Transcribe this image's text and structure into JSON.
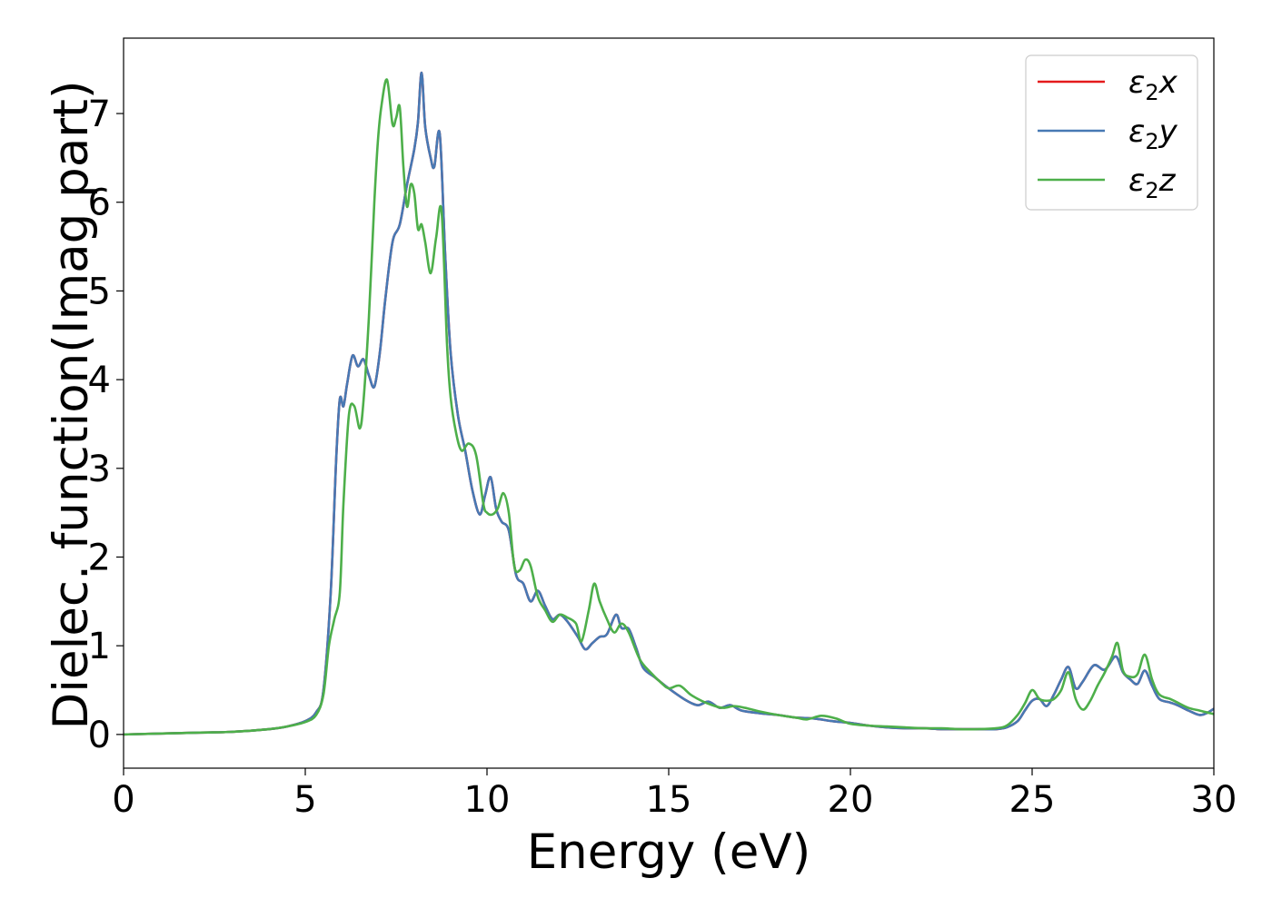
{
  "chart_data": {
    "type": "line",
    "title": "",
    "xlabel": "Energy (eV)",
    "ylabel": "Dielec. function(Imag part)",
    "xlim": [
      0,
      30
    ],
    "ylim": [
      -0.38,
      7.85
    ],
    "xticks": [
      0,
      5,
      10,
      15,
      20,
      25,
      30
    ],
    "yticks": [
      0,
      1,
      2,
      3,
      4,
      5,
      6,
      7
    ],
    "grid": false,
    "legend_position": "top-right",
    "series": [
      {
        "name": "ε₂x",
        "label_main": "ε",
        "label_sub": "2",
        "label_suffix": "x",
        "color": "#e41a1c",
        "x": [
          0,
          2,
          3,
          4,
          4.5,
          5,
          5.3,
          5.5,
          5.7,
          5.85,
          5.95,
          6.05,
          6.15,
          6.3,
          6.45,
          6.6,
          6.75,
          6.9,
          7.05,
          7.2,
          7.4,
          7.6,
          7.8,
          8.0,
          8.1,
          8.2,
          8.3,
          8.45,
          8.55,
          8.7,
          8.85,
          9.0,
          9.2,
          9.4,
          9.6,
          9.8,
          9.95,
          10.1,
          10.25,
          10.4,
          10.6,
          10.8,
          11.0,
          11.2,
          11.4,
          11.6,
          11.8,
          12.0,
          12.2,
          12.5,
          12.7,
          12.9,
          13.1,
          13.3,
          13.55,
          13.7,
          13.9,
          14.1,
          14.3,
          14.6,
          14.9,
          15.2,
          15.5,
          15.8,
          16.1,
          16.4,
          16.7,
          17.0,
          17.5,
          18.0,
          18.5,
          19.0,
          19.5,
          20.0,
          20.5,
          21.0,
          21.5,
          22.0,
          22.5,
          23.0,
          23.5,
          24.0,
          24.3,
          24.6,
          24.8,
          25.0,
          25.2,
          25.4,
          25.6,
          25.8,
          26.0,
          26.2,
          26.4,
          26.7,
          27.0,
          27.3,
          27.5,
          27.7,
          27.9,
          28.1,
          28.3,
          28.5,
          28.8,
          29.0,
          29.3,
          29.6,
          29.8,
          30.0
        ],
        "y": [
          0.0,
          0.02,
          0.03,
          0.06,
          0.09,
          0.15,
          0.25,
          0.5,
          1.6,
          3.1,
          3.78,
          3.7,
          3.95,
          4.27,
          4.15,
          4.23,
          4.05,
          3.92,
          4.3,
          4.9,
          5.55,
          5.75,
          6.2,
          6.6,
          6.9,
          7.46,
          6.85,
          6.5,
          6.4,
          6.77,
          5.4,
          4.3,
          3.6,
          3.2,
          2.75,
          2.48,
          2.7,
          2.9,
          2.55,
          2.4,
          2.3,
          1.8,
          1.7,
          1.5,
          1.62,
          1.45,
          1.3,
          1.35,
          1.28,
          1.1,
          0.96,
          1.03,
          1.1,
          1.13,
          1.35,
          1.2,
          1.19,
          0.98,
          0.75,
          0.65,
          0.55,
          0.46,
          0.38,
          0.33,
          0.37,
          0.3,
          0.33,
          0.27,
          0.24,
          0.22,
          0.19,
          0.18,
          0.15,
          0.13,
          0.1,
          0.08,
          0.07,
          0.07,
          0.06,
          0.06,
          0.06,
          0.06,
          0.08,
          0.15,
          0.27,
          0.38,
          0.4,
          0.32,
          0.45,
          0.62,
          0.76,
          0.52,
          0.6,
          0.78,
          0.73,
          0.88,
          0.7,
          0.62,
          0.57,
          0.72,
          0.55,
          0.4,
          0.36,
          0.33,
          0.27,
          0.22,
          0.24,
          0.29
        ]
      },
      {
        "name": "ε₂y",
        "label_main": "ε",
        "label_sub": "2",
        "label_suffix": "y",
        "color": "#4779b4",
        "x": [
          0,
          2,
          3,
          4,
          4.5,
          5,
          5.3,
          5.5,
          5.7,
          5.85,
          5.95,
          6.05,
          6.15,
          6.3,
          6.45,
          6.6,
          6.75,
          6.9,
          7.05,
          7.2,
          7.4,
          7.6,
          7.8,
          8.0,
          8.1,
          8.2,
          8.3,
          8.45,
          8.55,
          8.7,
          8.85,
          9.0,
          9.2,
          9.4,
          9.6,
          9.8,
          9.95,
          10.1,
          10.25,
          10.4,
          10.6,
          10.8,
          11.0,
          11.2,
          11.4,
          11.6,
          11.8,
          12.0,
          12.2,
          12.5,
          12.7,
          12.9,
          13.1,
          13.3,
          13.55,
          13.7,
          13.9,
          14.1,
          14.3,
          14.6,
          14.9,
          15.2,
          15.5,
          15.8,
          16.1,
          16.4,
          16.7,
          17.0,
          17.5,
          18.0,
          18.5,
          19.0,
          19.5,
          20.0,
          20.5,
          21.0,
          21.5,
          22.0,
          22.5,
          23.0,
          23.5,
          24.0,
          24.3,
          24.6,
          24.8,
          25.0,
          25.2,
          25.4,
          25.6,
          25.8,
          26.0,
          26.2,
          26.4,
          26.7,
          27.0,
          27.3,
          27.5,
          27.7,
          27.9,
          28.1,
          28.3,
          28.5,
          28.8,
          29.0,
          29.3,
          29.6,
          29.8,
          30.0
        ],
        "y": [
          0.0,
          0.02,
          0.03,
          0.06,
          0.09,
          0.15,
          0.25,
          0.5,
          1.6,
          3.1,
          3.78,
          3.7,
          3.95,
          4.27,
          4.15,
          4.23,
          4.05,
          3.92,
          4.3,
          4.9,
          5.55,
          5.75,
          6.2,
          6.6,
          6.9,
          7.46,
          6.85,
          6.5,
          6.4,
          6.77,
          5.4,
          4.3,
          3.6,
          3.2,
          2.75,
          2.48,
          2.7,
          2.9,
          2.55,
          2.4,
          2.3,
          1.8,
          1.7,
          1.5,
          1.62,
          1.45,
          1.3,
          1.35,
          1.28,
          1.1,
          0.96,
          1.03,
          1.1,
          1.13,
          1.35,
          1.2,
          1.19,
          0.98,
          0.75,
          0.65,
          0.55,
          0.46,
          0.38,
          0.33,
          0.37,
          0.3,
          0.33,
          0.27,
          0.24,
          0.22,
          0.19,
          0.18,
          0.15,
          0.13,
          0.1,
          0.08,
          0.07,
          0.07,
          0.06,
          0.06,
          0.06,
          0.06,
          0.08,
          0.15,
          0.27,
          0.38,
          0.4,
          0.32,
          0.45,
          0.62,
          0.76,
          0.52,
          0.6,
          0.78,
          0.73,
          0.88,
          0.7,
          0.62,
          0.57,
          0.72,
          0.55,
          0.4,
          0.36,
          0.33,
          0.27,
          0.22,
          0.24,
          0.29
        ]
      },
      {
        "name": "ε₂z",
        "label_main": "ε",
        "label_sub": "2",
        "label_suffix": "z",
        "color": "#4daf4a",
        "x": [
          0,
          2,
          3,
          4,
          4.5,
          5,
          5.3,
          5.5,
          5.65,
          5.8,
          5.95,
          6.05,
          6.2,
          6.35,
          6.5,
          6.6,
          6.75,
          6.9,
          7.0,
          7.1,
          7.25,
          7.4,
          7.5,
          7.6,
          7.7,
          7.8,
          7.9,
          8.0,
          8.1,
          8.2,
          8.3,
          8.45,
          8.6,
          8.75,
          8.9,
          9.0,
          9.15,
          9.3,
          9.5,
          9.7,
          9.9,
          10.0,
          10.15,
          10.3,
          10.45,
          10.6,
          10.75,
          10.9,
          11.05,
          11.2,
          11.4,
          11.6,
          11.8,
          12.0,
          12.2,
          12.45,
          12.6,
          12.8,
          12.95,
          13.1,
          13.3,
          13.5,
          13.7,
          13.9,
          14.2,
          14.5,
          14.8,
          15.0,
          15.3,
          15.6,
          15.9,
          16.2,
          16.5,
          16.8,
          17.1,
          17.5,
          18.0,
          18.5,
          18.8,
          19.2,
          19.6,
          20.0,
          20.5,
          21.0,
          21.5,
          22.0,
          22.5,
          23.0,
          23.5,
          24.0,
          24.3,
          24.6,
          24.8,
          25.0,
          25.2,
          25.4,
          25.6,
          25.8,
          26.0,
          26.2,
          26.4,
          26.6,
          26.8,
          27.0,
          27.2,
          27.35,
          27.5,
          27.7,
          27.9,
          28.1,
          28.3,
          28.5,
          28.8,
          29.0,
          29.3,
          29.6,
          29.8,
          30.0
        ],
        "y": [
          0.0,
          0.02,
          0.03,
          0.06,
          0.09,
          0.14,
          0.22,
          0.45,
          1.0,
          1.3,
          1.6,
          2.6,
          3.6,
          3.7,
          3.45,
          3.75,
          4.7,
          6.0,
          6.7,
          7.1,
          7.38,
          6.88,
          6.95,
          7.07,
          6.4,
          5.95,
          6.2,
          6.1,
          5.7,
          5.75,
          5.55,
          5.2,
          5.6,
          5.9,
          4.4,
          3.8,
          3.4,
          3.2,
          3.28,
          3.15,
          2.6,
          2.5,
          2.48,
          2.55,
          2.72,
          2.5,
          1.9,
          1.85,
          1.97,
          1.9,
          1.55,
          1.4,
          1.27,
          1.35,
          1.32,
          1.25,
          1.05,
          1.4,
          1.7,
          1.5,
          1.3,
          1.15,
          1.25,
          1.15,
          0.85,
          0.7,
          0.58,
          0.52,
          0.55,
          0.45,
          0.38,
          0.33,
          0.3,
          0.32,
          0.3,
          0.26,
          0.22,
          0.19,
          0.17,
          0.21,
          0.18,
          0.12,
          0.1,
          0.09,
          0.08,
          0.07,
          0.07,
          0.06,
          0.06,
          0.07,
          0.1,
          0.22,
          0.35,
          0.5,
          0.4,
          0.38,
          0.4,
          0.5,
          0.7,
          0.4,
          0.28,
          0.38,
          0.55,
          0.7,
          0.88,
          1.03,
          0.72,
          0.65,
          0.68,
          0.9,
          0.62,
          0.45,
          0.4,
          0.36,
          0.3,
          0.27,
          0.25,
          0.23
        ]
      }
    ]
  }
}
